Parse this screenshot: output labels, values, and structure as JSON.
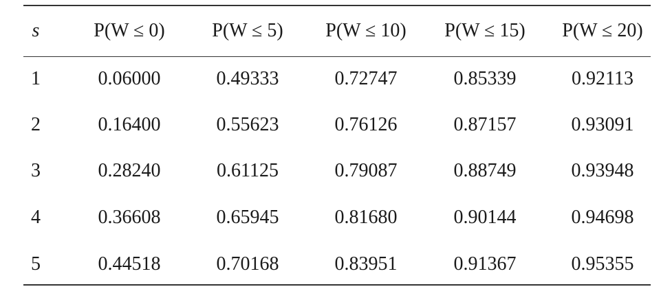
{
  "table": {
    "header": [
      "s",
      "P(W ≤ 0)",
      "P(W ≤ 5)",
      "P(W ≤ 10)",
      "P(W ≤ 15)",
      "P(W ≤ 20)"
    ],
    "rows": [
      [
        "1",
        "0.06000",
        "0.49333",
        "0.72747",
        "0.85339",
        "0.92113"
      ],
      [
        "2",
        "0.16400",
        "0.55623",
        "0.76126",
        "0.87157",
        "0.93091"
      ],
      [
        "3",
        "0.28240",
        "0.61125",
        "0.79087",
        "0.88749",
        "0.93948"
      ],
      [
        "4",
        "0.36608",
        "0.65945",
        "0.81680",
        "0.90144",
        "0.94698"
      ],
      [
        "5",
        "0.44518",
        "0.70168",
        "0.83951",
        "0.91367",
        "0.95355"
      ]
    ]
  }
}
